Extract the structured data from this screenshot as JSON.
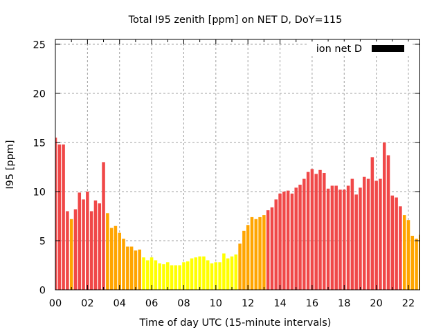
{
  "chart_data": {
    "type": "bar",
    "title": "Total I95 zenith [ppm] on NET D, DoY=115",
    "xlabel": "Time of day UTC (15-minute intervals)",
    "ylabel": "I95 [ppm]",
    "xlim": [
      0,
      22.69
    ],
    "ylim": [
      0,
      25.5
    ],
    "x_interval_hours": 0.25,
    "x_ticks": [
      {
        "value": 0,
        "label": "00"
      },
      {
        "value": 2,
        "label": "02"
      },
      {
        "value": 4,
        "label": "04"
      },
      {
        "value": 6,
        "label": "06"
      },
      {
        "value": 8,
        "label": "08"
      },
      {
        "value": 10,
        "label": "10"
      },
      {
        "value": 12,
        "label": "12"
      },
      {
        "value": 14,
        "label": "14"
      },
      {
        "value": 16,
        "label": "16"
      },
      {
        "value": 18,
        "label": "18"
      },
      {
        "value": 20,
        "label": "20"
      },
      {
        "value": 22,
        "label": "22"
      }
    ],
    "y_ticks": [
      {
        "value": 0,
        "label": "0"
      },
      {
        "value": 5,
        "label": "5"
      },
      {
        "value": 10,
        "label": "10"
      },
      {
        "value": 15,
        "label": "15"
      },
      {
        "value": 20,
        "label": "20"
      },
      {
        "value": 25,
        "label": "25"
      }
    ],
    "grid": true,
    "legend": {
      "position": "top-right",
      "entries": [
        {
          "label": "ion net D",
          "color": "#000000"
        }
      ]
    },
    "color_thresholds": [
      {
        "min": 8,
        "color": "#f04848",
        "name": "red"
      },
      {
        "min": 4,
        "color": "#ffa500",
        "name": "orange"
      },
      {
        "min": 0,
        "color": "#ffff00",
        "name": "yellow"
      }
    ],
    "series": [
      {
        "name": "ion net D",
        "values": [
          15.5,
          14.8,
          14.8,
          8.0,
          7.2,
          8.2,
          9.9,
          9.2,
          10.0,
          8.0,
          9.1,
          8.8,
          13.0,
          7.8,
          6.3,
          6.5,
          5.8,
          5.2,
          4.4,
          4.4,
          4.0,
          4.1,
          3.3,
          3.0,
          3.3,
          3.0,
          2.7,
          2.6,
          2.8,
          2.5,
          2.5,
          2.5,
          2.8,
          2.9,
          3.2,
          3.3,
          3.4,
          3.4,
          3.0,
          2.7,
          2.8,
          2.8,
          3.7,
          3.2,
          3.4,
          3.6,
          4.7,
          6.0,
          6.6,
          7.4,
          7.2,
          7.4,
          7.6,
          8.1,
          8.4,
          9.2,
          9.8,
          10.0,
          10.1,
          9.8,
          10.4,
          10.7,
          11.3,
          12.0,
          12.3,
          11.8,
          12.2,
          11.9,
          10.3,
          10.6,
          10.6,
          10.2,
          10.2,
          10.6,
          11.3,
          9.7,
          10.4,
          11.5,
          11.3,
          13.5,
          11.1,
          11.3,
          15.0,
          13.7,
          9.6,
          9.4,
          8.5,
          7.6,
          7.1,
          5.5,
          5.2,
          5.6
        ]
      }
    ]
  }
}
